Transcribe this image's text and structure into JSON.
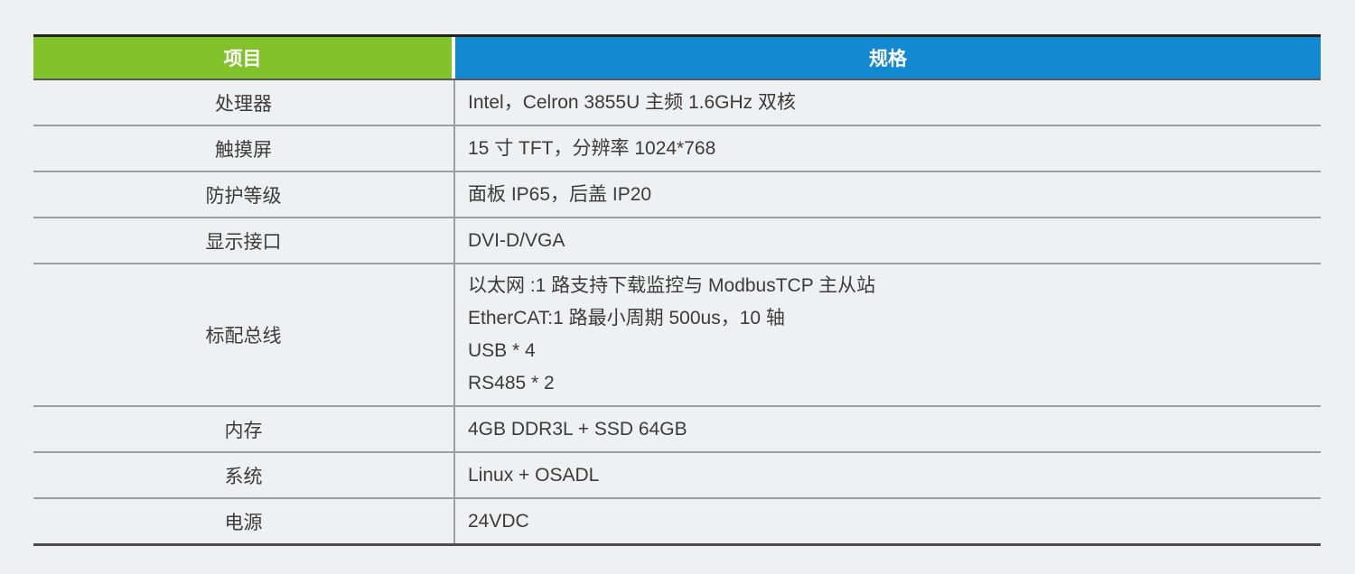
{
  "table": {
    "header": {
      "item": "项目",
      "spec": "规格"
    },
    "rows": [
      {
        "item": "处理器",
        "spec": [
          "Intel，Celron 3855U 主频 1.6GHz 双核"
        ]
      },
      {
        "item": "触摸屏",
        "spec": [
          "15 寸 TFT，分辨率 1024*768"
        ]
      },
      {
        "item": "防护等级",
        "spec": [
          "面板 IP65，后盖 IP20"
        ]
      },
      {
        "item": "显示接口",
        "spec": [
          "DVI-D/VGA"
        ]
      },
      {
        "item": "标配总线",
        "spec": [
          "以太网 :1 路支持下载监控与 ModbusTCP 主从站",
          "EtherCAT:1 路最小周期 500us，10 轴",
          "USB * 4",
          "RS485 * 2"
        ]
      },
      {
        "item": "内存",
        "spec": [
          "4GB DDR3L + SSD 64GB"
        ]
      },
      {
        "item": "系统",
        "spec": [
          "Linux + OSADL"
        ]
      },
      {
        "item": "电源",
        "spec": [
          "24VDC"
        ]
      }
    ],
    "colors": {
      "header_item_bg": "#82c32c",
      "header_spec_bg": "#1389d1",
      "header_text": "#ffffff",
      "page_bg": "#edf1f1",
      "body_text": "#3e3a39",
      "top_border": "#26221e",
      "row_separator": "#9c9fa0",
      "bottom_border": "#4c4c4e"
    }
  }
}
